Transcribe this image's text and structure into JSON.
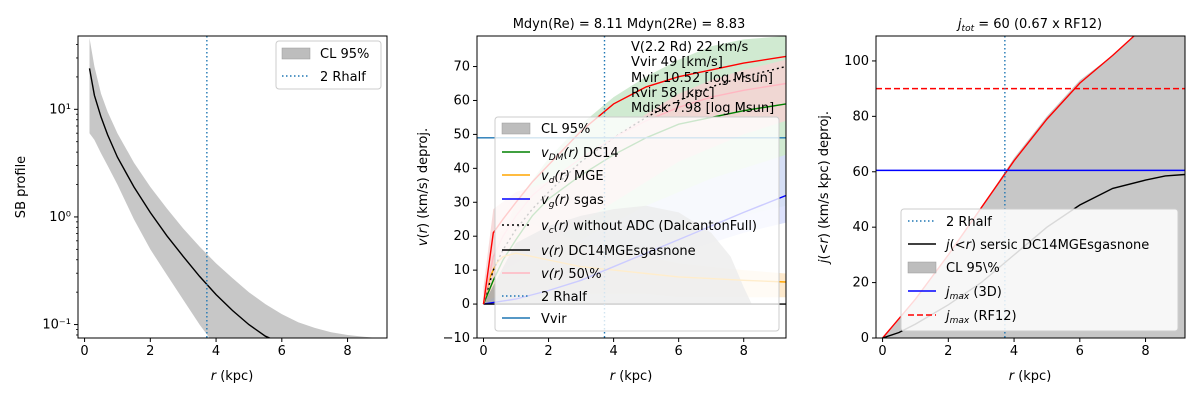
{
  "chart_data": [
    {
      "type": "line",
      "title": "",
      "xlabel": "r (kpc)",
      "ylabel": "SB profile",
      "xlim": [
        -0.2,
        9.2
      ],
      "ylim": [
        0.075,
        48
      ],
      "yscale": "log",
      "xticks": [
        0,
        2,
        4,
        6,
        8
      ],
      "xtick_labels": [
        "0",
        "2",
        "4",
        "6",
        "8"
      ],
      "yticks": [
        0.1,
        1,
        10
      ],
      "ytick_labels": [
        "10⁻¹",
        "10⁰",
        "10¹"
      ],
      "rhalf2": 3.72,
      "series": [
        {
          "name": "CL 95%",
          "kind": "band",
          "color": "#bdbdbd",
          "x": [
            0.15,
            0.3,
            0.5,
            0.7,
            1,
            1.5,
            2,
            2.5,
            3,
            3.5,
            4,
            4.5,
            5,
            5.5,
            6,
            6.5,
            7,
            7.5,
            8,
            8.5,
            8.9
          ],
          "upper": [
            46,
            25,
            14,
            9.5,
            6,
            3.2,
            1.9,
            1.2,
            0.78,
            0.53,
            0.37,
            0.27,
            0.2,
            0.155,
            0.125,
            0.105,
            0.093,
            0.085,
            0.08,
            0.077,
            0.075
          ],
          "lower": [
            6,
            5.2,
            3.9,
            3.0,
            2.0,
            0.95,
            0.5,
            0.29,
            0.17,
            0.1,
            0.062,
            0.05,
            0.05,
            0.05,
            0.05,
            0.05,
            0.05,
            0.05,
            0.05,
            0.05,
            0.05
          ]
        },
        {
          "name": "SB profile",
          "kind": "line",
          "color": "#000000",
          "x": [
            0.15,
            0.3,
            0.5,
            0.7,
            1,
            1.5,
            2,
            2.5,
            3,
            3.5,
            4,
            4.5,
            5,
            5.5,
            5.85
          ],
          "y": [
            24,
            13.5,
            8.5,
            5.8,
            3.6,
            1.9,
            1.1,
            0.67,
            0.43,
            0.28,
            0.19,
            0.135,
            0.1,
            0.078,
            0.07
          ]
        }
      ],
      "legend": {
        "position": "top-right",
        "entries": [
          "CL 95%",
          "2 Rhalf"
        ]
      }
    },
    {
      "type": "line",
      "title": "Mdyn(Re) = 8.11  Mdyn(2Re) = 8.83",
      "xlabel": "r (kpc)",
      "ylabel": "v(r) (km/s) deproj.",
      "xlim": [
        -0.2,
        9.3
      ],
      "ylim": [
        -10,
        79
      ],
      "xticks": [
        0,
        2,
        4,
        6,
        8
      ],
      "xtick_labels": [
        "0",
        "2",
        "4",
        "6",
        "8"
      ],
      "yticks": [
        -10,
        0,
        10,
        20,
        30,
        40,
        50,
        60,
        70
      ],
      "ytick_labels": [
        "−10",
        "0",
        "10",
        "20",
        "30",
        "40",
        "50",
        "60",
        "70"
      ],
      "rhalf2": 3.72,
      "vvir": 49,
      "annotations": [
        "V(2.2 Rd) 22 km/s",
        "Vvir 49 [km/s]",
        "Mvir 10.52 [log Msun]",
        "Rvir 58 [kpc]",
        "Mdisk 7.98 [log Msun]"
      ],
      "series": [
        {
          "name": "v_DM band",
          "kind": "band",
          "color": "#c8e6c9",
          "x": [
            0,
            0.5,
            1,
            2,
            3,
            4,
            5,
            6,
            7,
            8,
            9.3
          ],
          "upper": [
            5,
            18,
            30,
            43,
            53,
            61,
            67,
            72,
            76,
            78,
            79
          ],
          "lower": [
            0,
            2,
            4,
            8,
            11,
            14,
            17,
            20,
            23,
            26,
            29
          ]
        },
        {
          "name": "v_g band",
          "kind": "band",
          "color": "#d6dcfb",
          "x": [
            0,
            1,
            2,
            3,
            4,
            5,
            6,
            7,
            8,
            9.3
          ],
          "upper": [
            5,
            10,
            14,
            19,
            24,
            29,
            33,
            37,
            40,
            44
          ],
          "lower": [
            0,
            1,
            3,
            5,
            8,
            11,
            15,
            18,
            21,
            24
          ]
        },
        {
          "name": "v_d band",
          "kind": "band",
          "color": "#fde5c3",
          "x": [
            0,
            0.5,
            1,
            2,
            3,
            4,
            5,
            6,
            7,
            8,
            9.3
          ],
          "upper": [
            5,
            21,
            25,
            22,
            18,
            16,
            14,
            12,
            11,
            10,
            9
          ],
          "lower": [
            0,
            3,
            4,
            4,
            3,
            3,
            3,
            2,
            2,
            2,
            2
          ]
        },
        {
          "name": "v(r) 50% band",
          "kind": "band",
          "color": "#f6d4d4",
          "x": [
            0,
            0.3,
            1,
            2,
            3,
            4,
            5,
            6,
            7,
            8,
            9.3
          ],
          "upper": [
            5,
            28,
            33,
            36,
            42,
            49,
            56,
            62,
            66,
            69,
            72
          ],
          "lower": [
            0,
            8,
            12,
            18,
            24,
            30,
            36,
            42,
            46,
            50,
            54
          ]
        },
        {
          "name": "CL 95%",
          "kind": "band",
          "color": "#9e9e9e",
          "x": [
            0,
            1,
            2,
            3,
            4,
            5,
            6,
            7,
            7.6,
            8.0,
            8.25
          ],
          "upper": [
            0,
            18,
            23,
            26,
            28,
            29,
            27,
            21,
            14,
            5,
            0
          ],
          "lower": [
            0,
            0,
            0,
            0,
            0,
            0,
            0,
            0,
            0,
            0,
            0
          ]
        },
        {
          "name": "v_DM(r) DC14",
          "kind": "line",
          "color": "#008000",
          "x": [
            0,
            0.3,
            0.6,
            1,
            1.5,
            2,
            3,
            4,
            5,
            6,
            7,
            8,
            9.3
          ],
          "y": [
            0,
            7,
            13,
            19,
            26,
            31,
            38,
            44,
            49,
            53,
            55,
            57,
            59
          ]
        },
        {
          "name": "v_d(r) MGE",
          "kind": "line",
          "color": "#ffa500",
          "x": [
            0,
            0.2,
            0.4,
            0.6,
            1,
            1.5,
            2,
            3,
            4,
            5,
            6,
            7,
            8,
            9.3
          ],
          "y": [
            0,
            8,
            12,
            14,
            15,
            14,
            13,
            11,
            10,
            9,
            8,
            7.5,
            7,
            6.5
          ]
        },
        {
          "name": "v_g(r) sgas",
          "kind": "line",
          "color": "#0000ff",
          "x": [
            0,
            1,
            2,
            3,
            4,
            5,
            6,
            7,
            8,
            9.3
          ],
          "y": [
            0,
            1.5,
            4,
            7,
            11,
            15,
            19,
            23,
            27,
            32
          ]
        },
        {
          "name": "v_c(r) without ADC (DalcantonFull)",
          "kind": "line",
          "dash": "2,3",
          "color": "#000000",
          "x": [
            0,
            0.3,
            0.6,
            1,
            1.5,
            2,
            3,
            4,
            5,
            6,
            7,
            8,
            9.3
          ],
          "y": [
            0,
            10,
            16,
            22,
            28,
            33,
            42,
            49,
            55,
            60,
            64,
            67,
            70
          ]
        },
        {
          "name": "v(r) DC14MGEsgasnone",
          "kind": "line",
          "color": "#000000",
          "x": [
            0,
            9.3
          ],
          "y": [
            0,
            0
          ]
        },
        {
          "name": "v(r) 50\\%",
          "kind": "line",
          "color": "#ffb6c1",
          "x": [
            0,
            0.3,
            0.6,
            1,
            1.5,
            2,
            3,
            4,
            5,
            6,
            7,
            8,
            9.3
          ],
          "y": [
            0,
            14,
            20,
            26,
            32,
            36,
            43,
            49,
            54,
            58,
            61,
            63,
            65
          ]
        },
        {
          "name": "v(r) upper",
          "kind": "line",
          "color": "#ff0000",
          "x": [
            0,
            0.3,
            0.6,
            1,
            1.5,
            2,
            3,
            4,
            5,
            6,
            7,
            8,
            9.3
          ],
          "y": [
            0,
            21,
            25,
            30,
            36,
            41,
            51,
            59,
            64,
            67,
            69,
            71,
            73
          ]
        }
      ],
      "legend": {
        "position": "lower-center",
        "entries": [
          "CL 95%",
          "v_DM(r) DC14",
          "v_d(r) MGE",
          "v_g(r) sgas",
          "v_c(r) without ADC (DalcantonFull)",
          "v(r) DC14MGEsgasnone",
          "v(r) 50\\%",
          "2 Rhalf",
          "Vvir"
        ]
      }
    },
    {
      "type": "line",
      "title": "j_tot = 60 (0.67 x RF12)",
      "xlabel": "r (kpc)",
      "ylabel": "j(<r) (km/s kpc) deproj.",
      "xlim": [
        -0.2,
        9.2
      ],
      "ylim": [
        0,
        109
      ],
      "xticks": [
        0,
        2,
        4,
        6,
        8
      ],
      "xtick_labels": [
        "0",
        "2",
        "4",
        "6",
        "8"
      ],
      "yticks": [
        0,
        20,
        40,
        60,
        80,
        100
      ],
      "ytick_labels": [
        "0",
        "20",
        "40",
        "60",
        "80",
        "100"
      ],
      "rhalf2": 3.72,
      "jmax_3d": 60.5,
      "jmax_rf12": 90,
      "series": [
        {
          "name": "CL 95\\%",
          "kind": "band",
          "color": "#bdbdbd",
          "x": [
            0,
            1,
            2,
            3,
            4,
            5,
            6,
            7,
            7.65,
            8,
            9.2
          ],
          "upper": [
            0,
            14,
            30,
            47,
            65,
            80,
            93,
            102,
            109,
            109,
            109
          ],
          "lower": [
            0,
            0,
            0,
            0,
            0,
            0,
            0,
            0,
            0,
            0,
            0
          ]
        },
        {
          "name": "j_max upper",
          "kind": "line",
          "color": "#ff0000",
          "x": [
            0,
            1,
            2,
            3,
            4,
            5,
            6,
            7,
            7.65
          ],
          "y": [
            0,
            14,
            30,
            47,
            64,
            79,
            92,
            102,
            109
          ]
        },
        {
          "name": "j(<r) sersic DC14MGEsgasnone",
          "kind": "line",
          "color": "#000000",
          "x": [
            0,
            0.5,
            1,
            2,
            3,
            4,
            5,
            6,
            7,
            8,
            8.6,
            9.2
          ],
          "y": [
            0,
            2,
            5,
            12,
            20,
            30,
            40,
            48,
            54,
            57,
            58.5,
            59
          ]
        }
      ],
      "legend": {
        "position": "lower-right",
        "entries": [
          "2 Rhalf",
          "j(<r) sersic DC14MGEsgasnone",
          "CL 95\\%",
          "j_max (3D)",
          "j_max (RF12)"
        ]
      }
    }
  ],
  "labels": {
    "p1": {
      "xlabel_r": "r",
      "xlabel_rest": " (kpc)",
      "ylabel": "SB profile",
      "legend_cl": "CL 95%",
      "legend_rhalf": "2 Rhalf"
    },
    "p2": {
      "title": "Mdyn(Re) = 8.11  Mdyn(2Re) = 8.83",
      "xlabel_r": "r",
      "xlabel_rest": " (kpc)",
      "ylabel_v": "v",
      "ylabel_mid": "(",
      "ylabel_r": "r",
      "ylabel_rest": ") (km/s) deproj.",
      "ann": [
        "V(2.2 Rd) 22 km/s",
        "Vvir 49 [km/s]",
        "Mvir 10.52 [log Msun]",
        "Rvir 58 [kpc]",
        "Mdisk 7.98 [log Msun]"
      ],
      "leg_cl": "CL 95%",
      "leg_dm_sym": "v",
      "leg_dm_sub": "DM",
      "leg_dm_r": "(r)",
      "leg_dm_rest": " DC14",
      "leg_d_sym": "v",
      "leg_d_sub": "d",
      "leg_d_r": "(r)",
      "leg_d_rest": " MGE",
      "leg_g_sym": "v",
      "leg_g_sub": "g",
      "leg_g_r": "(r)",
      "leg_g_rest": " sgas",
      "leg_c_sym": "v",
      "leg_c_sub": "c",
      "leg_c_r": "(r)",
      "leg_c_rest": " without ADC (DalcantonFull)",
      "leg_v_sym": "v",
      "leg_v_r": "(r)",
      "leg_v_rest": " DC14MGEsgasnone",
      "leg_v50_sym": "v",
      "leg_v50_r": "(r)",
      "leg_v50_rest": " 50\\%",
      "leg_rhalf": "2 Rhalf",
      "leg_vvir": "Vvir"
    },
    "p3": {
      "title_j": "j",
      "title_sub": "tot",
      "title_rest": " = 60 (0.67 x RF12)",
      "xlabel_r": "r",
      "xlabel_rest": " (kpc)",
      "ylabel_j": "j",
      "ylabel_lt": "(<",
      "ylabel_r": "r",
      "ylabel_rest": ") (km/s kpc) deproj.",
      "leg_rhalf": "2 Rhalf",
      "leg_j_sym": "j",
      "leg_j_lt": "(<",
      "leg_j_r": "r",
      "leg_j_rest": ") sersic DC14MGEsgasnone",
      "leg_cl": "CL 95\\%",
      "leg_jmax3d_sym": "j",
      "leg_jmax3d_sub": "max",
      "leg_jmax3d_rest": " (3D)",
      "leg_jmaxrf_sym": "j",
      "leg_jmaxrf_sub": "max",
      "leg_jmaxrf_rest": " (RF12)"
    }
  },
  "colors": {
    "rhalf": "#1f77b4",
    "vvir": "#1f77b4",
    "jmax_3d": "#0000ff",
    "jmax_rf12": "#ff0000",
    "band_grey": "#bdbdbd"
  }
}
